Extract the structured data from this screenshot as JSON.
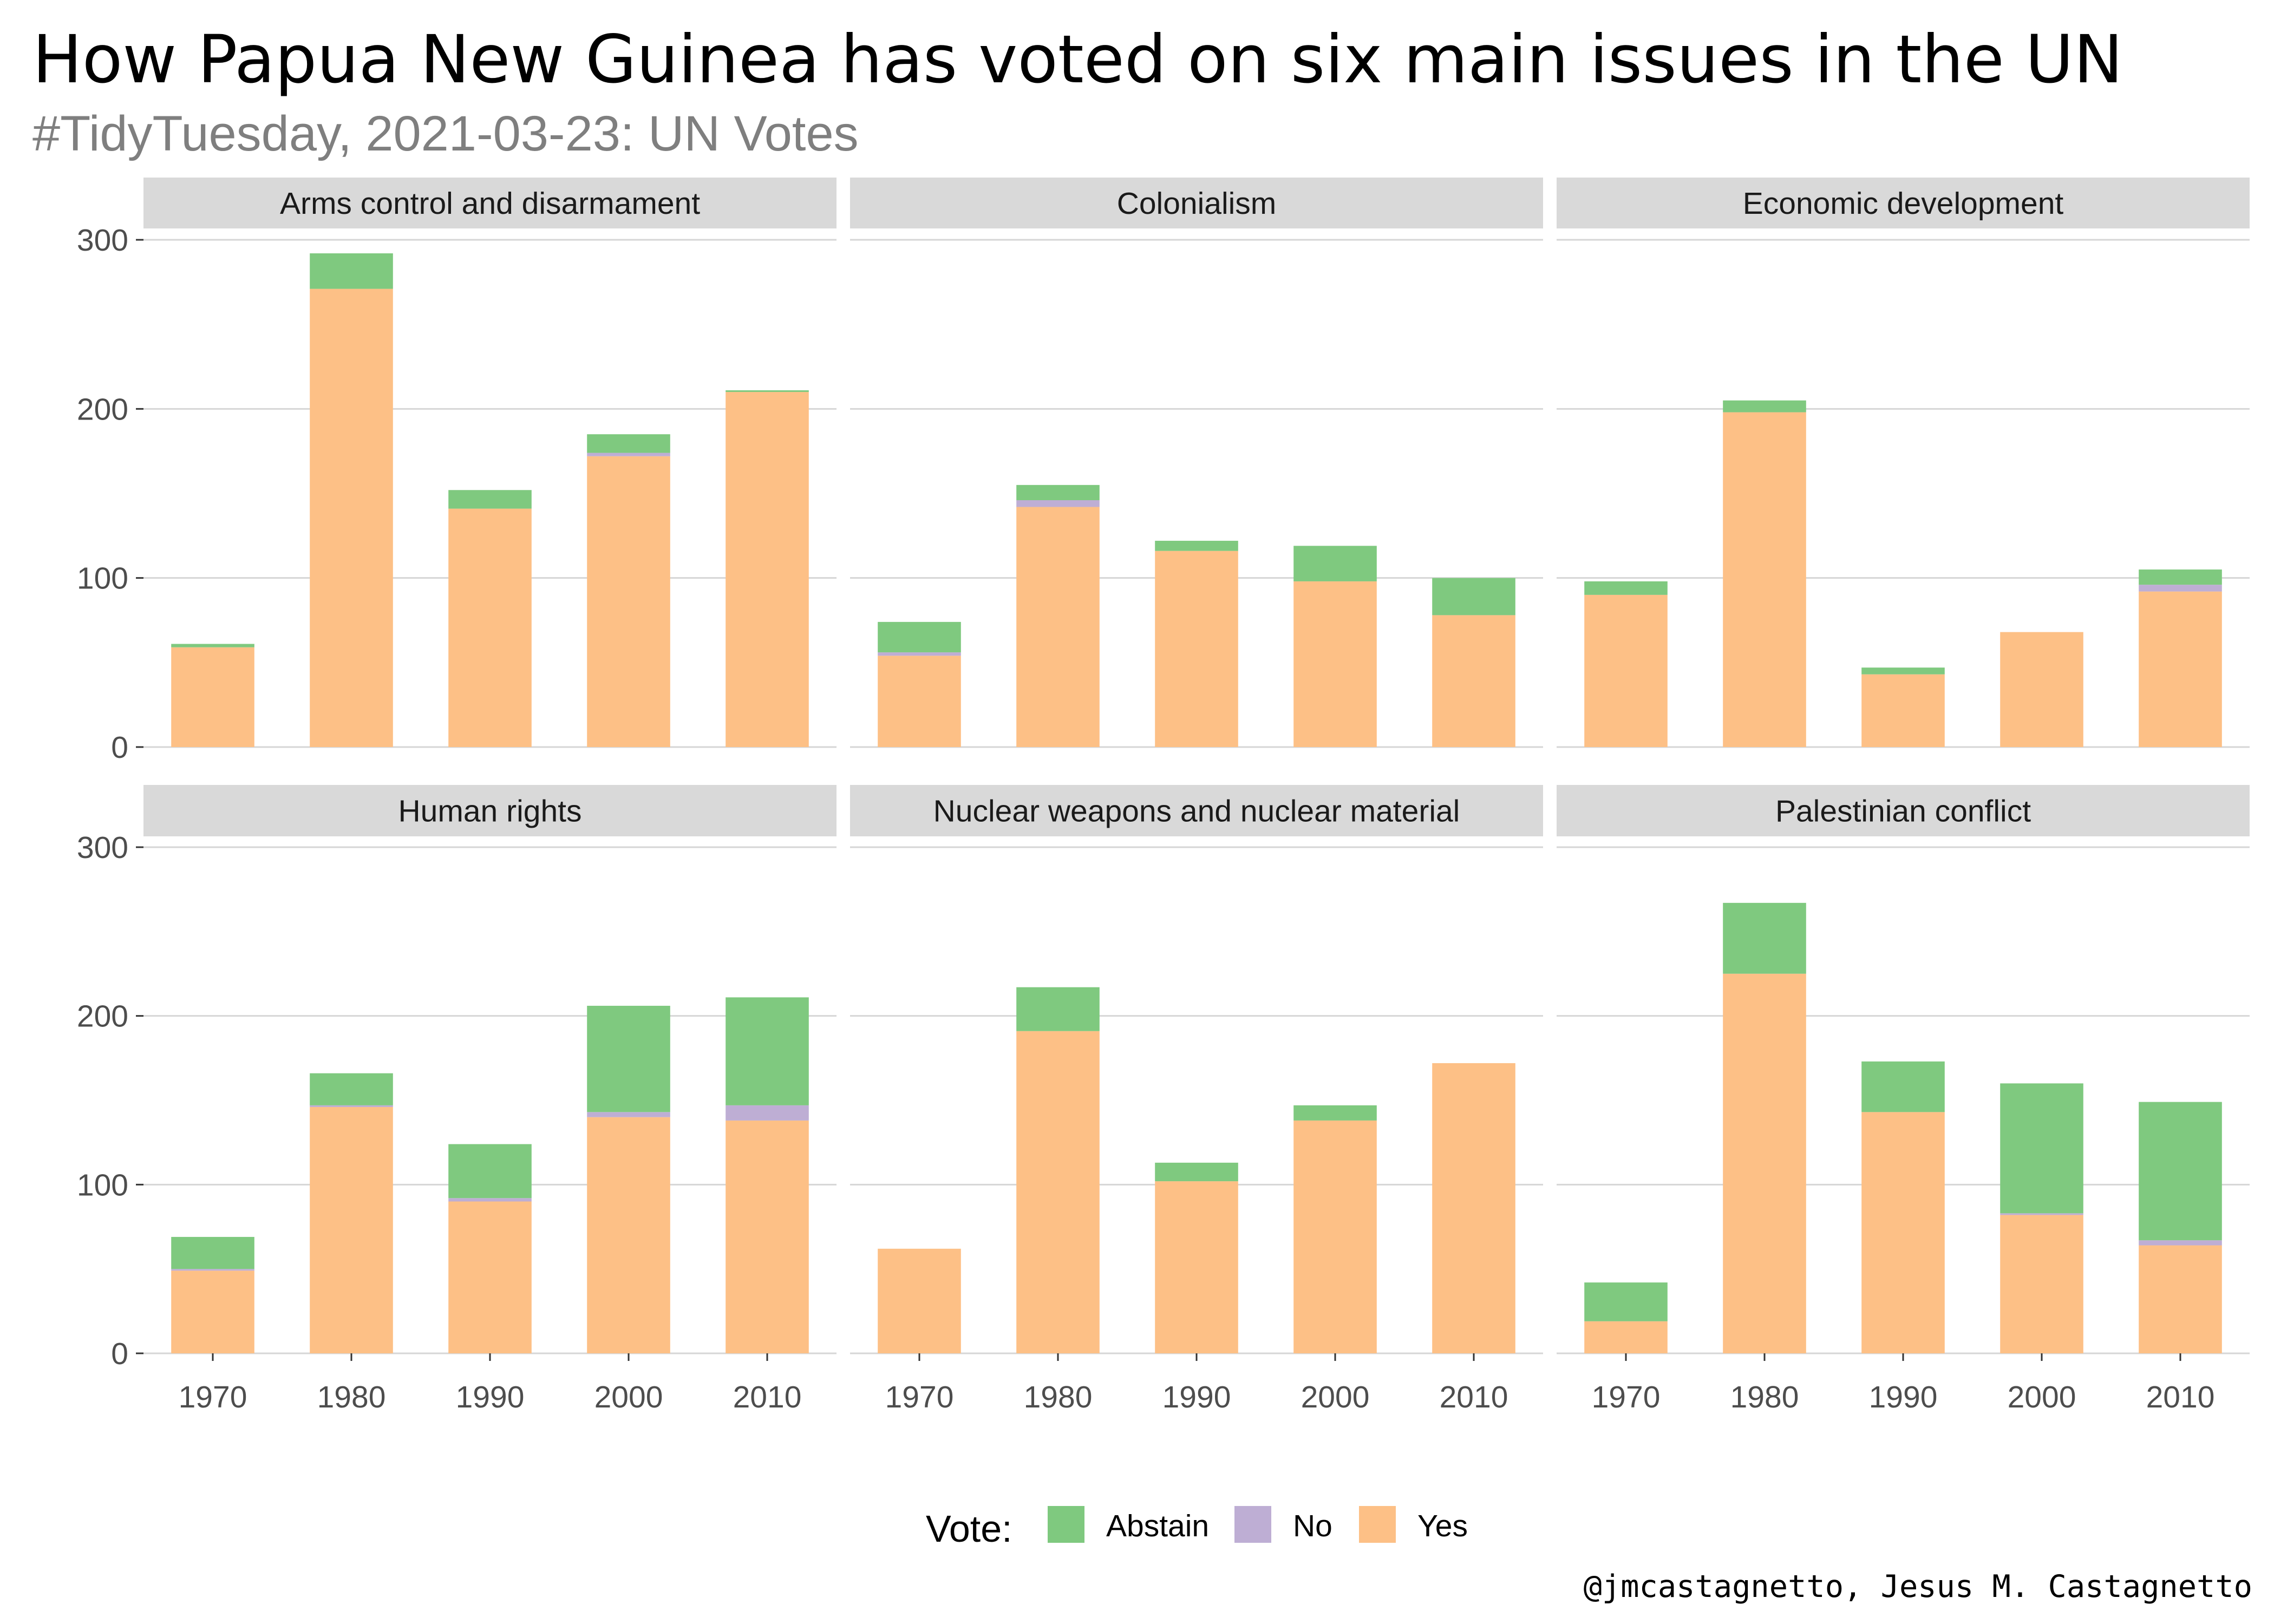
{
  "title": "How Papua New Guinea has voted on six main issues in the UN",
  "subtitle": "#TidyTuesday, 2021-03-23: UN Votes",
  "caption": "@jmcastagnetto, Jesus M. Castagnetto",
  "legend": {
    "title": "Vote:",
    "position": "bottom",
    "items": [
      {
        "label": "Abstain",
        "color": "#7fc97f"
      },
      {
        "label": "No",
        "color": "#beaed4"
      },
      {
        "label": "Yes",
        "color": "#fdc086"
      }
    ]
  },
  "chart_data": {
    "type": "bar",
    "stacked": true,
    "facet_wrap": true,
    "categories": [
      "1970",
      "1980",
      "1990",
      "2000",
      "2010"
    ],
    "ylim": [
      0,
      300
    ],
    "yticks": [
      0,
      100,
      200,
      300
    ],
    "grid": true,
    "stack_order_bottom_to_top": [
      "Yes",
      "No",
      "Abstain"
    ],
    "panels": [
      {
        "title": "Arms control and disarmament",
        "series": [
          {
            "name": "Yes",
            "values": [
              59,
              271,
              141,
              172,
              210
            ]
          },
          {
            "name": "No",
            "values": [
              0,
              0,
              0,
              2,
              0
            ]
          },
          {
            "name": "Abstain",
            "values": [
              2,
              21,
              11,
              11,
              1
            ]
          }
        ]
      },
      {
        "title": "Colonialism",
        "series": [
          {
            "name": "Yes",
            "values": [
              54,
              142,
              116,
              98,
              78
            ]
          },
          {
            "name": "No",
            "values": [
              2,
              4,
              0,
              0,
              0
            ]
          },
          {
            "name": "Abstain",
            "values": [
              18,
              9,
              6,
              21,
              22
            ]
          }
        ]
      },
      {
        "title": "Economic development",
        "series": [
          {
            "name": "Yes",
            "values": [
              90,
              198,
              43,
              68,
              92
            ]
          },
          {
            "name": "No",
            "values": [
              0,
              0,
              0,
              0,
              4
            ]
          },
          {
            "name": "Abstain",
            "values": [
              8,
              7,
              4,
              0,
              9
            ]
          }
        ]
      },
      {
        "title": "Human rights",
        "series": [
          {
            "name": "Yes",
            "values": [
              49,
              146,
              90,
              140,
              138
            ]
          },
          {
            "name": "No",
            "values": [
              1,
              1,
              2,
              3,
              9
            ]
          },
          {
            "name": "Abstain",
            "values": [
              19,
              19,
              32,
              63,
              64
            ]
          }
        ]
      },
      {
        "title": "Nuclear weapons and nuclear material",
        "series": [
          {
            "name": "Yes",
            "values": [
              62,
              191,
              102,
              138,
              172
            ]
          },
          {
            "name": "No",
            "values": [
              0,
              0,
              0,
              0,
              0
            ]
          },
          {
            "name": "Abstain",
            "values": [
              0,
              26,
              11,
              9,
              0
            ]
          }
        ]
      },
      {
        "title": "Palestinian conflict",
        "series": [
          {
            "name": "Yes",
            "values": [
              19,
              225,
              143,
              82,
              64
            ]
          },
          {
            "name": "No",
            "values": [
              0,
              0,
              0,
              1,
              3
            ]
          },
          {
            "name": "Abstain",
            "values": [
              23,
              42,
              30,
              77,
              82
            ]
          }
        ]
      }
    ]
  }
}
